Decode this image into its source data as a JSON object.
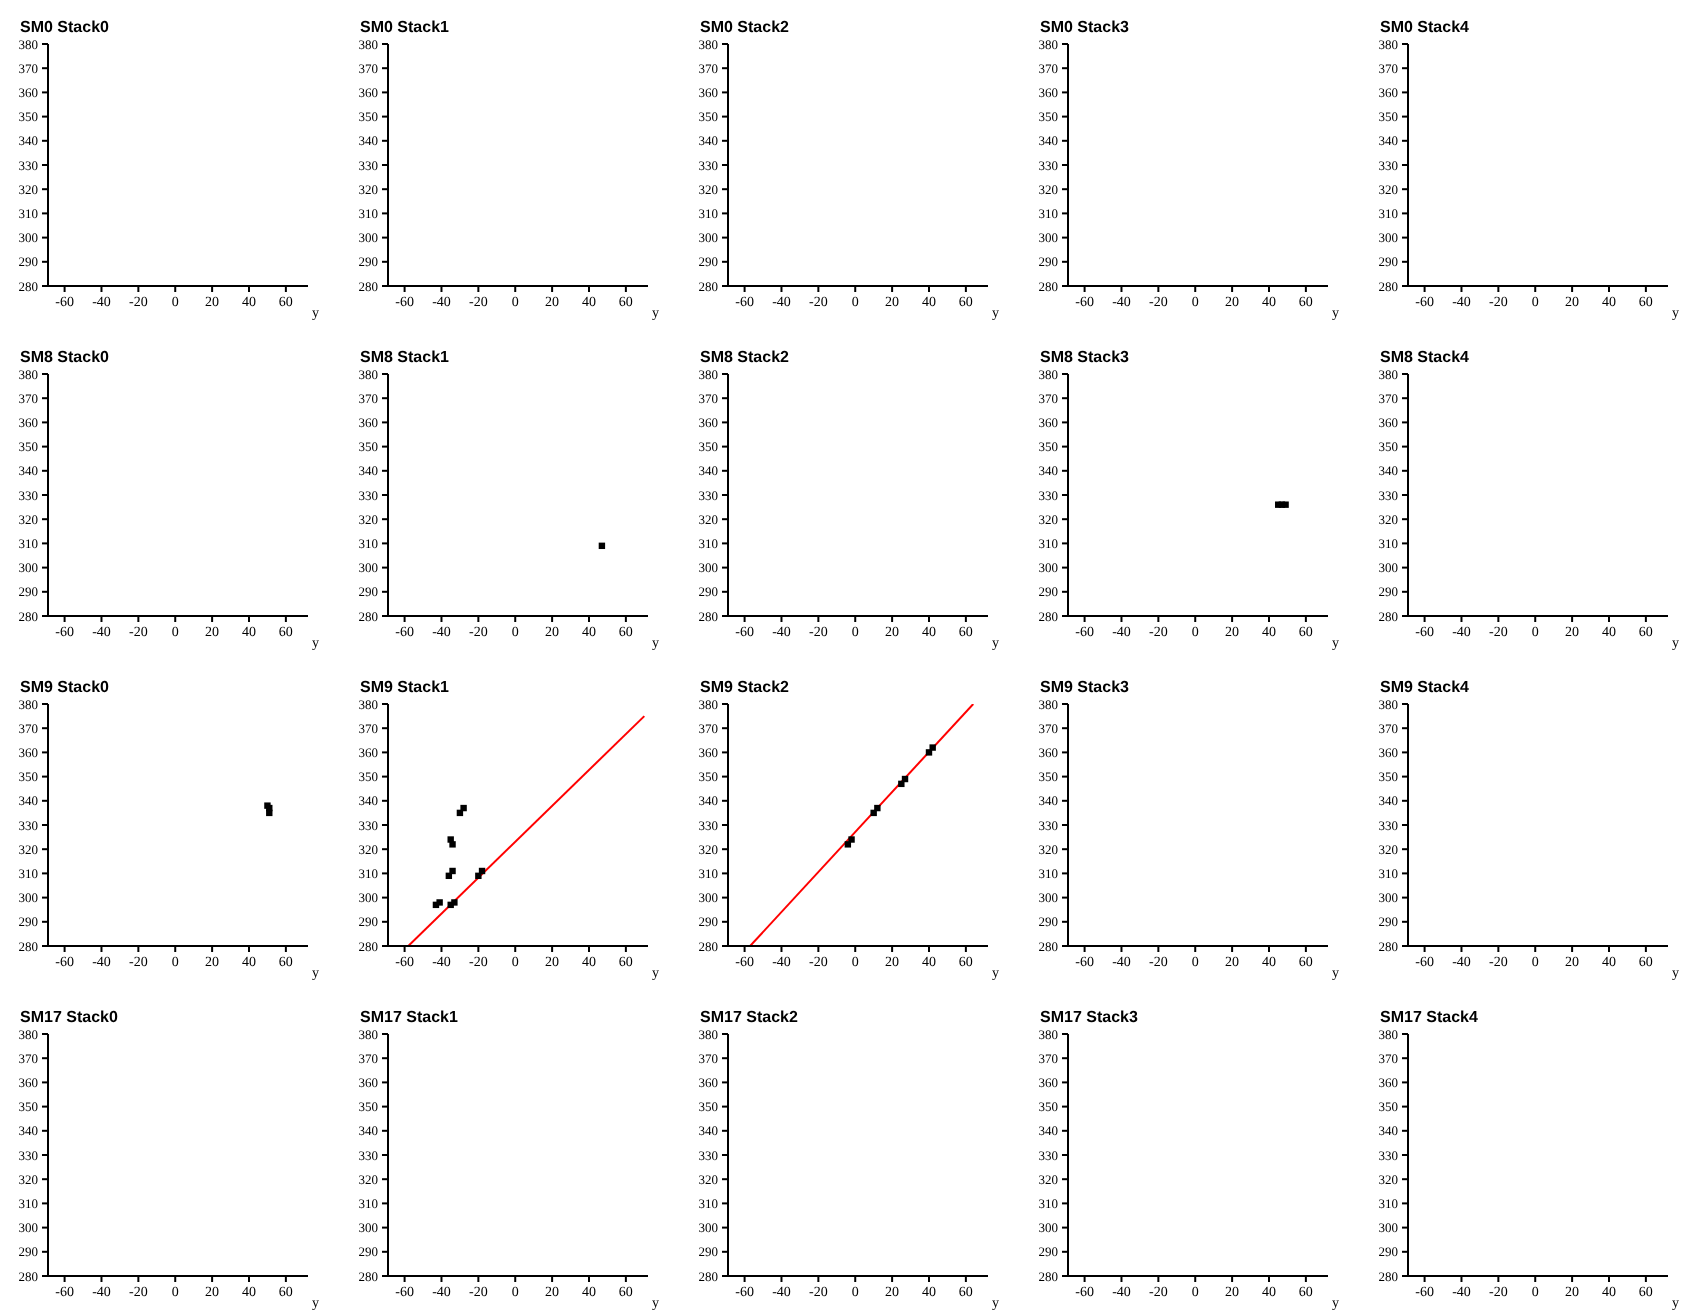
{
  "chart_data": [
    {
      "type": "scatter",
      "title": "SM0 Stack0",
      "xlabel": "y",
      "xlim": [
        -69,
        72
      ],
      "ylim": [
        280,
        380
      ],
      "xticks": [
        -60,
        -40,
        -20,
        0,
        20,
        40,
        60
      ],
      "yticks": [
        280,
        290,
        300,
        310,
        320,
        330,
        340,
        350,
        360,
        370,
        380
      ]
    },
    {
      "type": "scatter",
      "title": "SM0 Stack1",
      "xlabel": "y",
      "xlim": [
        -69,
        72
      ],
      "ylim": [
        280,
        380
      ],
      "xticks": [
        -60,
        -40,
        -20,
        0,
        20,
        40,
        60
      ],
      "yticks": [
        280,
        290,
        300,
        310,
        320,
        330,
        340,
        350,
        360,
        370,
        380
      ]
    },
    {
      "type": "scatter",
      "title": "SM0 Stack2",
      "xlabel": "y",
      "xlim": [
        -69,
        72
      ],
      "ylim": [
        280,
        380
      ],
      "xticks": [
        -60,
        -40,
        -20,
        0,
        20,
        40,
        60
      ],
      "yticks": [
        280,
        290,
        300,
        310,
        320,
        330,
        340,
        350,
        360,
        370,
        380
      ]
    },
    {
      "type": "scatter",
      "title": "SM0 Stack3",
      "xlabel": "y",
      "xlim": [
        -69,
        72
      ],
      "ylim": [
        280,
        380
      ],
      "xticks": [
        -60,
        -40,
        -20,
        0,
        20,
        40,
        60
      ],
      "yticks": [
        280,
        290,
        300,
        310,
        320,
        330,
        340,
        350,
        360,
        370,
        380
      ]
    },
    {
      "type": "scatter",
      "title": "SM0 Stack4",
      "xlabel": "y",
      "xlim": [
        -69,
        72
      ],
      "ylim": [
        280,
        380
      ],
      "xticks": [
        -60,
        -40,
        -20,
        0,
        20,
        40,
        60
      ],
      "yticks": [
        280,
        290,
        300,
        310,
        320,
        330,
        340,
        350,
        360,
        370,
        380
      ]
    },
    {
      "type": "scatter",
      "title": "SM8 Stack0",
      "xlabel": "y",
      "xlim": [
        -69,
        72
      ],
      "ylim": [
        280,
        380
      ],
      "xticks": [
        -60,
        -40,
        -20,
        0,
        20,
        40,
        60
      ],
      "yticks": [
        280,
        290,
        300,
        310,
        320,
        330,
        340,
        350,
        360,
        370,
        380
      ]
    },
    {
      "type": "scatter",
      "title": "SM8 Stack1",
      "xlabel": "y",
      "xlim": [
        -69,
        72
      ],
      "ylim": [
        280,
        380
      ],
      "xticks": [
        -60,
        -40,
        -20,
        0,
        20,
        40,
        60
      ],
      "yticks": [
        280,
        290,
        300,
        310,
        320,
        330,
        340,
        350,
        360,
        370,
        380
      ],
      "marker": "square",
      "series": [
        {
          "color": "#000000",
          "x": [
            47
          ],
          "values": [
            309
          ]
        }
      ]
    },
    {
      "type": "scatter",
      "title": "SM8 Stack2",
      "xlabel": "y",
      "xlim": [
        -69,
        72
      ],
      "ylim": [
        280,
        380
      ],
      "xticks": [
        -60,
        -40,
        -20,
        0,
        20,
        40,
        60
      ],
      "yticks": [
        280,
        290,
        300,
        310,
        320,
        330,
        340,
        350,
        360,
        370,
        380
      ]
    },
    {
      "type": "scatter",
      "title": "SM8 Stack3",
      "xlabel": "y",
      "xlim": [
        -69,
        72
      ],
      "ylim": [
        280,
        380
      ],
      "xticks": [
        -60,
        -40,
        -20,
        0,
        20,
        40,
        60
      ],
      "yticks": [
        280,
        290,
        300,
        310,
        320,
        330,
        340,
        350,
        360,
        370,
        380
      ],
      "marker": "square",
      "series": [
        {
          "color": "#000000",
          "x": [
            45,
            47,
            49
          ],
          "values": [
            326,
            326,
            326
          ]
        }
      ]
    },
    {
      "type": "scatter",
      "title": "SM8 Stack4",
      "xlabel": "y",
      "xlim": [
        -69,
        72
      ],
      "ylim": [
        280,
        380
      ],
      "xticks": [
        -60,
        -40,
        -20,
        0,
        20,
        40,
        60
      ],
      "yticks": [
        280,
        290,
        300,
        310,
        320,
        330,
        340,
        350,
        360,
        370,
        380
      ]
    },
    {
      "type": "scatter",
      "title": "SM9 Stack0",
      "xlabel": "y",
      "xlim": [
        -69,
        72
      ],
      "ylim": [
        280,
        380
      ],
      "xticks": [
        -60,
        -40,
        -20,
        0,
        20,
        40,
        60
      ],
      "yticks": [
        280,
        290,
        300,
        310,
        320,
        330,
        340,
        350,
        360,
        370,
        380
      ],
      "marker": "square",
      "series": [
        {
          "color": "#000000",
          "x": [
            50,
            51,
            51
          ],
          "values": [
            338,
            337,
            335
          ]
        }
      ]
    },
    {
      "type": "scatter",
      "title": "SM9 Stack1",
      "xlabel": "y",
      "xlim": [
        -69,
        72
      ],
      "ylim": [
        280,
        380
      ],
      "xticks": [
        -60,
        -40,
        -20,
        0,
        20,
        40,
        60
      ],
      "yticks": [
        280,
        290,
        300,
        310,
        320,
        330,
        340,
        350,
        360,
        370,
        380
      ],
      "series": [
        {
          "color": "#000000",
          "marker": "square",
          "x": [
            -43,
            -41,
            -35,
            -33,
            -36,
            -34,
            -20,
            -18,
            -35,
            -34,
            -30,
            -28
          ],
          "values": [
            297,
            298,
            297,
            298,
            309,
            311,
            309,
            311,
            324,
            322,
            335,
            337
          ]
        },
        {
          "type": "line",
          "marker": "none",
          "color": "#ff0000",
          "x": [
            -58,
            70
          ],
          "values": [
            280,
            375
          ]
        }
      ]
    },
    {
      "type": "scatter",
      "title": "SM9 Stack2",
      "xlabel": "y",
      "xlim": [
        -69,
        72
      ],
      "ylim": [
        280,
        380
      ],
      "xticks": [
        -60,
        -40,
        -20,
        0,
        20,
        40,
        60
      ],
      "yticks": [
        280,
        290,
        300,
        310,
        320,
        330,
        340,
        350,
        360,
        370,
        380
      ],
      "series": [
        {
          "color": "#000000",
          "marker": "square",
          "x": [
            -4,
            -2,
            10,
            12,
            25,
            27,
            40,
            42
          ],
          "values": [
            322,
            324,
            335,
            337,
            347,
            349,
            360,
            362
          ]
        },
        {
          "type": "line",
          "marker": "none",
          "color": "#ff0000",
          "x": [
            -57,
            64
          ],
          "values": [
            280,
            380
          ]
        }
      ]
    },
    {
      "type": "scatter",
      "title": "SM9 Stack3",
      "xlabel": "y",
      "xlim": [
        -69,
        72
      ],
      "ylim": [
        280,
        380
      ],
      "xticks": [
        -60,
        -40,
        -20,
        0,
        20,
        40,
        60
      ],
      "yticks": [
        280,
        290,
        300,
        310,
        320,
        330,
        340,
        350,
        360,
        370,
        380
      ]
    },
    {
      "type": "scatter",
      "title": "SM9 Stack4",
      "xlabel": "y",
      "xlim": [
        -69,
        72
      ],
      "ylim": [
        280,
        380
      ],
      "xticks": [
        -60,
        -40,
        -20,
        0,
        20,
        40,
        60
      ],
      "yticks": [
        280,
        290,
        300,
        310,
        320,
        330,
        340,
        350,
        360,
        370,
        380
      ]
    },
    {
      "type": "scatter",
      "title": "SM17 Stack0",
      "xlabel": "y",
      "xlim": [
        -69,
        72
      ],
      "ylim": [
        280,
        380
      ],
      "xticks": [
        -60,
        -40,
        -20,
        0,
        20,
        40,
        60
      ],
      "yticks": [
        280,
        290,
        300,
        310,
        320,
        330,
        340,
        350,
        360,
        370,
        380
      ]
    },
    {
      "type": "scatter",
      "title": "SM17 Stack1",
      "xlabel": "y",
      "xlim": [
        -69,
        72
      ],
      "ylim": [
        280,
        380
      ],
      "xticks": [
        -60,
        -40,
        -20,
        0,
        20,
        40,
        60
      ],
      "yticks": [
        280,
        290,
        300,
        310,
        320,
        330,
        340,
        350,
        360,
        370,
        380
      ]
    },
    {
      "type": "scatter",
      "title": "SM17 Stack2",
      "xlabel": "y",
      "xlim": [
        -69,
        72
      ],
      "ylim": [
        280,
        380
      ],
      "xticks": [
        -60,
        -40,
        -20,
        0,
        20,
        40,
        60
      ],
      "yticks": [
        280,
        290,
        300,
        310,
        320,
        330,
        340,
        350,
        360,
        370,
        380
      ]
    },
    {
      "type": "scatter",
      "title": "SM17 Stack3",
      "xlabel": "y",
      "xlim": [
        -69,
        72
      ],
      "ylim": [
        280,
        380
      ],
      "xticks": [
        -60,
        -40,
        -20,
        0,
        20,
        40,
        60
      ],
      "yticks": [
        280,
        290,
        300,
        310,
        320,
        330,
        340,
        350,
        360,
        370,
        380
      ]
    },
    {
      "type": "scatter",
      "title": "SM17 Stack4",
      "xlabel": "y",
      "xlim": [
        -69,
        72
      ],
      "ylim": [
        280,
        380
      ],
      "xticks": [
        -60,
        -40,
        -20,
        0,
        20,
        40,
        60
      ],
      "yticks": [
        280,
        290,
        300,
        310,
        320,
        330,
        340,
        350,
        360,
        370,
        380
      ]
    }
  ]
}
